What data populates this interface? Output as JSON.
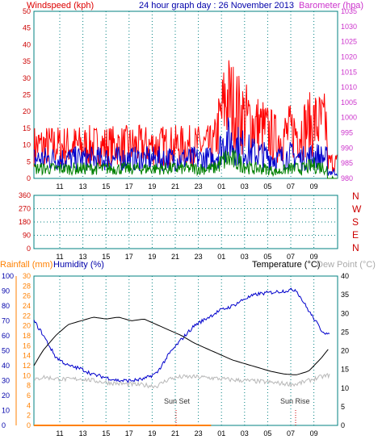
{
  "header": {
    "windspeed_label": "Windspeed (kph)",
    "title": "24 hour graph day : 26 November 2013",
    "barometer_label": "Barometer (hpa)"
  },
  "footer_labels": {
    "rainfall": "Rainfall (mm)",
    "humidity": "Humidity (%)",
    "temperature": "Temperature (°C)",
    "dewpoint": "Dew Point (°C)",
    "sunset": "Sun Set",
    "sunrise": "Sun Rise"
  },
  "colors": {
    "wind_gust": "#ff0000",
    "wind_avg": "#0000cc",
    "wind_speed": "#008000",
    "barometer": "#ee44ee",
    "direction": "#cc0000",
    "temperature": "#000000",
    "dewpoint": "#b8b8b8",
    "humidity": "#0000cc",
    "rainfall": "#ff8000",
    "frame": "#008080",
    "grid": "#008080"
  },
  "chart_data": [
    {
      "type": "line",
      "name": "wind-and-barometer",
      "x_ticks": [
        "11",
        "13",
        "15",
        "17",
        "19",
        "21",
        "23",
        "01",
        "03",
        "05",
        "07",
        "09"
      ],
      "left_axis": {
        "label": "Windspeed (kph)",
        "range": [
          0,
          50
        ],
        "ticks": [
          0,
          5,
          10,
          15,
          20,
          25,
          30,
          35,
          40,
          45,
          50
        ]
      },
      "right_axis": {
        "label": "Barometer (hpa)",
        "range": [
          980,
          1035
        ],
        "ticks": [
          980,
          985,
          990,
          995,
          1000,
          1005,
          1010,
          1015,
          1020,
          1025,
          1030,
          1035
        ]
      },
      "series": [
        {
          "name": "Barometer",
          "axis": "right",
          "hours": [
            0,
            2,
            4,
            6,
            7,
            8,
            9,
            10,
            12,
            14,
            16,
            18,
            20,
            21,
            23,
            24
          ],
          "values": [
            1016,
            1015.7,
            1015,
            1013.8,
            1013.2,
            1013.5,
            1014.2,
            1014.6,
            1014.1,
            1013.7,
            1013.6,
            1013.9,
            1014.6,
            1015,
            1014.8,
            1014.2
          ]
        },
        {
          "name": "Gust",
          "axis": "left",
          "hours": [
            0,
            1,
            2,
            3,
            4,
            5,
            6,
            7,
            8,
            9,
            10,
            11,
            11.5,
            12,
            14,
            16,
            18,
            20,
            21,
            22,
            22.5,
            23,
            24
          ],
          "values": [
            10,
            25,
            20,
            17,
            15,
            12,
            14,
            15,
            17,
            16,
            15,
            9,
            1,
            1,
            3,
            4,
            5,
            6,
            7,
            11,
            12,
            8,
            5
          ]
        },
        {
          "name": "Average",
          "axis": "left",
          "hours": [
            0,
            1,
            2,
            3,
            4,
            5,
            6,
            7,
            8,
            9,
            10,
            11,
            11.5,
            12,
            21,
            22,
            23,
            24
          ],
          "values": [
            6,
            12,
            10,
            8,
            7,
            6,
            7,
            6,
            7,
            6,
            5,
            3,
            0,
            0,
            0,
            3,
            3,
            2
          ]
        },
        {
          "name": "Speed",
          "axis": "left",
          "hours": [
            0,
            1,
            2,
            3,
            4,
            5,
            6,
            7,
            8,
            9,
            10,
            11,
            11.5,
            12,
            24
          ],
          "values": [
            3,
            6,
            5,
            3,
            3,
            2,
            3,
            3,
            4,
            3,
            2,
            1,
            0,
            0,
            0
          ]
        }
      ]
    },
    {
      "type": "line",
      "name": "wind-direction",
      "x_ticks": [
        "11",
        "13",
        "15",
        "17",
        "19",
        "21",
        "23",
        "01",
        "03",
        "05",
        "07",
        "09"
      ],
      "left_axis": {
        "range": [
          0,
          360
        ],
        "ticks": [
          0,
          90,
          180,
          270,
          360
        ]
      },
      "right_axis_labels": [
        "N",
        "W",
        "S",
        "E",
        "N"
      ],
      "series": [
        {
          "name": "Direction",
          "hours": [
            0,
            0.6,
            0.9,
            1.2,
            1.6,
            2.0,
            2.4,
            2.8,
            3.1,
            3.5,
            4,
            4.5,
            5,
            6,
            7,
            8,
            9,
            10,
            11,
            12,
            16,
            20,
            21,
            22,
            22.5,
            23,
            23.5,
            24
          ],
          "values": [
            65,
            55,
            330,
            40,
            340,
            60,
            350,
            0,
            355,
            95,
            300,
            125,
            190,
            130,
            150,
            170,
            160,
            150,
            150,
            150,
            150,
            150,
            140,
            145,
            150,
            35,
            80,
            78
          ]
        }
      ]
    },
    {
      "type": "line",
      "name": "temperature-humidity-rainfall",
      "x_ticks": [
        "11",
        "13",
        "15",
        "17",
        "19",
        "21",
        "23",
        "01",
        "03",
        "05",
        "07",
        "09"
      ],
      "humidity_axis": {
        "label": "Humidity (%)",
        "range": [
          0,
          100
        ],
        "ticks": [
          0,
          10,
          20,
          30,
          40,
          50,
          60,
          70,
          80,
          90,
          100
        ]
      },
      "rainfall_axis": {
        "label": "Rainfall (mm)",
        "range": [
          0,
          30
        ],
        "ticks": [
          0,
          2,
          4,
          6,
          8,
          10,
          12,
          14,
          16,
          18,
          20,
          22,
          24,
          26,
          28,
          30
        ]
      },
      "temperature_axis": {
        "label": "Temperature (°C)",
        "range": [
          0,
          40
        ],
        "ticks": [
          0,
          5,
          10,
          15,
          20,
          25,
          30,
          35,
          40
        ]
      },
      "annotations": [
        {
          "text": "Sun Set",
          "hour": 20.4
        },
        {
          "text": "Sun Rise",
          "hour": 6.9
        }
      ],
      "series": [
        {
          "name": "Temperature",
          "axis": "temperature",
          "hours": [
            9.8,
            10.5,
            11.5,
            12.5,
            13.5,
            14.5,
            15.5,
            16.5,
            17.5,
            18.5,
            19.5,
            20.5,
            21.5,
            22.5,
            23.5,
            0.5,
            1.5,
            2.5,
            3.5,
            4.5,
            5.5,
            6.5,
            7.5,
            8.5,
            9.2
          ],
          "values": [
            16,
            20,
            24,
            27,
            28,
            29,
            28.5,
            29,
            28,
            28.5,
            27,
            25.5,
            24,
            22,
            20.5,
            19,
            17.5,
            16.5,
            15.5,
            14.5,
            13.8,
            13.5,
            14.5,
            18,
            21
          ]
        },
        {
          "name": "Dew Point",
          "axis": "temperature",
          "hours": [
            9.8,
            10.5,
            11.5,
            12.5,
            13.5,
            14.5,
            15.5,
            16.5,
            17.5,
            18.5,
            19.5,
            20.5,
            21.5,
            22.5,
            23.5,
            0.5,
            1.5,
            2.5,
            3.5,
            4.5,
            5.5,
            6.5,
            7.5,
            8.5,
            9.2
          ],
          "values": [
            12,
            13,
            12.5,
            12.3,
            12.5,
            12,
            11.5,
            11.2,
            11,
            10.8,
            10.5,
            12.5,
            13,
            13,
            12.8,
            12.5,
            12.2,
            12,
            11.8,
            11.5,
            11.2,
            11,
            12,
            13,
            13.5
          ]
        },
        {
          "name": "Humidity",
          "axis": "humidity",
          "hours": [
            9.8,
            10.5,
            11.5,
            12.5,
            13.5,
            14.5,
            15.5,
            16.5,
            17.5,
            18.5,
            19.5,
            20.5,
            21.5,
            22.5,
            23.5,
            0.5,
            1.5,
            2.5,
            3.5,
            4.5,
            5.5,
            6.5,
            7.5,
            8.5,
            9.2
          ],
          "values": [
            70,
            61,
            46,
            40,
            38,
            34,
            32,
            30,
            30,
            31,
            35,
            48,
            58,
            67,
            72,
            77,
            80,
            85,
            88,
            89,
            90,
            91,
            77,
            64,
            60
          ]
        },
        {
          "name": "Rainfall",
          "axis": "rainfall",
          "hours": [
            9.8,
            24
          ],
          "values": [
            0,
            0
          ]
        }
      ]
    }
  ]
}
